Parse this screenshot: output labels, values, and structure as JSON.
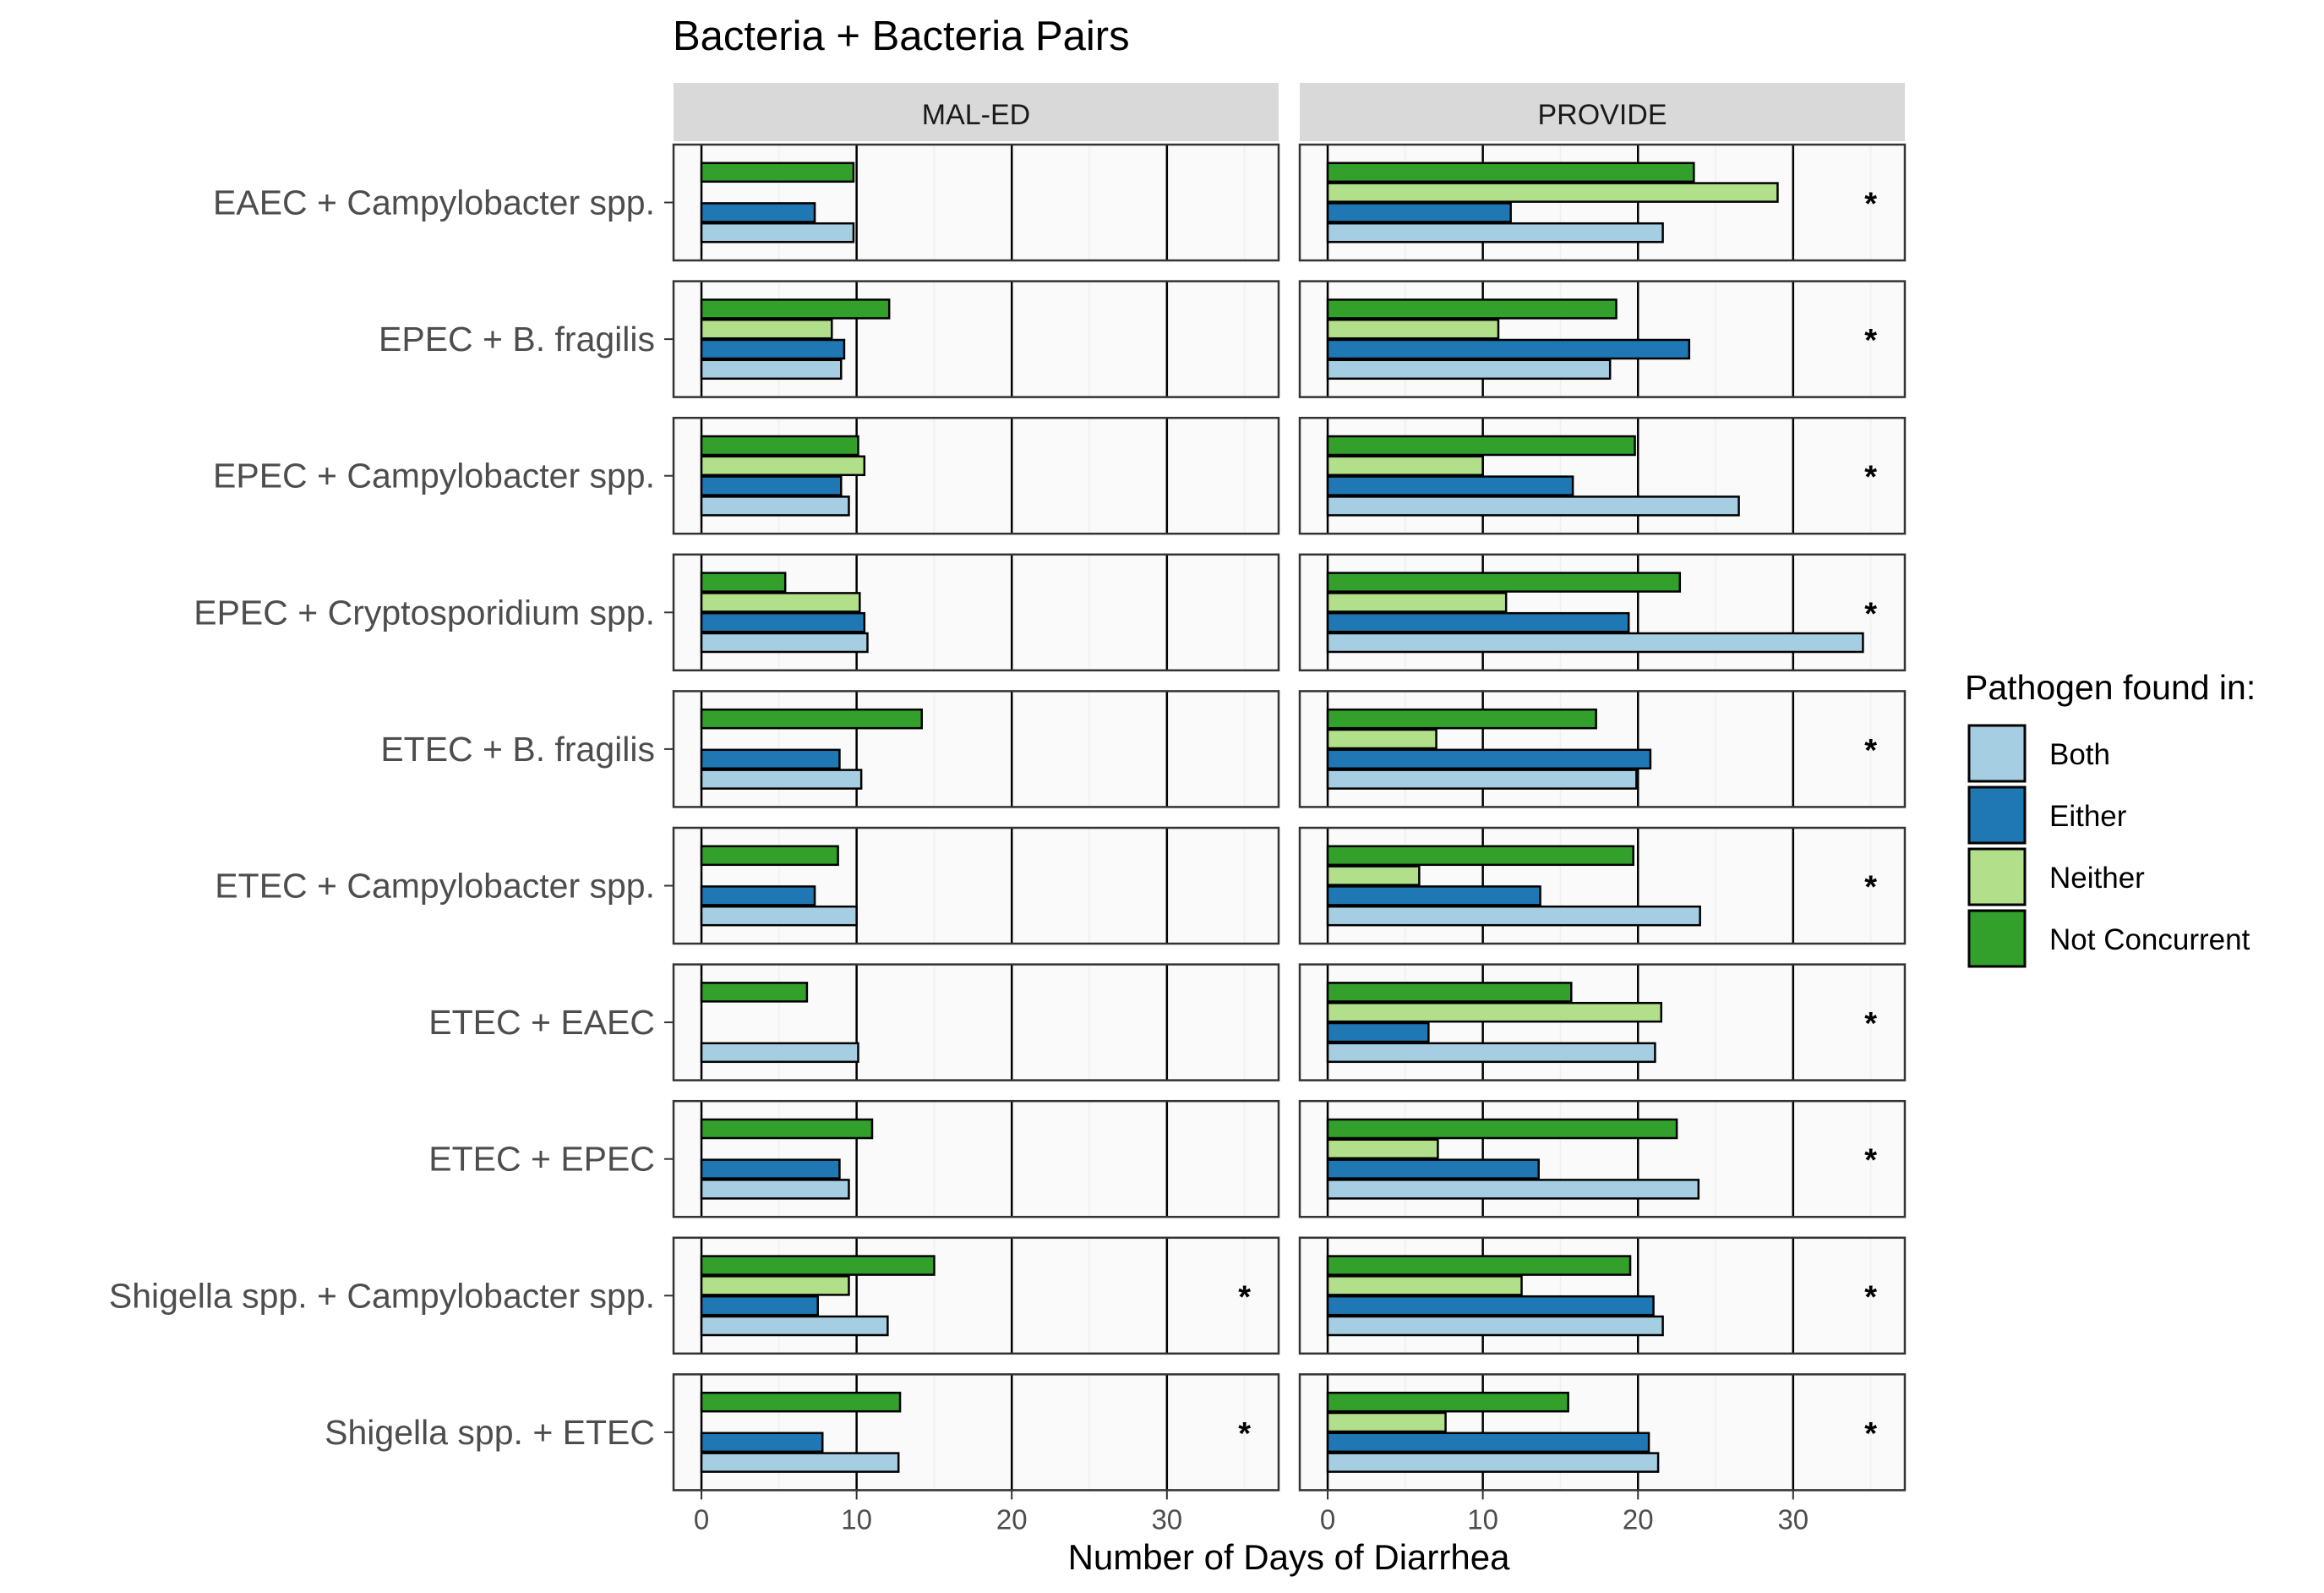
{
  "chart_data": {
    "type": "bar",
    "orientation": "horizontal",
    "title": "Bacteria + Bacteria Pairs",
    "xlabel": "Number of Days of Diarrhea",
    "xlim": [
      -1.8,
      37.2
    ],
    "xticks": [
      0,
      10,
      20,
      30
    ],
    "panels": [
      "MAL-ED",
      "PROVIDE"
    ],
    "series_names": [
      "Both",
      "Either",
      "Neither",
      "Not Concurrent"
    ],
    "legend": {
      "title": "Pathogen found in:",
      "position": "right",
      "items": [
        {
          "label": "Both",
          "color": "#a6cee3"
        },
        {
          "label": "Either",
          "color": "#1f78b4"
        },
        {
          "label": "Neither",
          "color": "#b2df8a"
        },
        {
          "label": "Not Concurrent",
          "color": "#33a02c"
        }
      ]
    },
    "significance_marker": "*",
    "rows": [
      {
        "label": "EAEC + Campylobacter spp.",
        "MAL-ED": {
          "values": [
            9.8,
            7.3,
            null,
            9.8
          ],
          "significant": false
        },
        "PROVIDE": {
          "values": [
            21.6,
            11.8,
            29.0,
            23.6
          ],
          "significant": true
        }
      },
      {
        "label": "EPEC + B. fragilis",
        "MAL-ED": {
          "values": [
            9.0,
            9.2,
            8.4,
            12.1
          ],
          "significant": false
        },
        "PROVIDE": {
          "values": [
            18.2,
            23.3,
            11.0,
            18.6
          ],
          "significant": true
        }
      },
      {
        "label": "EPEC + Campylobacter spp.",
        "MAL-ED": {
          "values": [
            9.5,
            9.0,
            10.5,
            10.1
          ],
          "significant": false
        },
        "PROVIDE": {
          "values": [
            26.5,
            15.8,
            10.0,
            19.8
          ],
          "significant": true
        }
      },
      {
        "label": "EPEC + Cryptosporidium spp.",
        "MAL-ED": {
          "values": [
            10.7,
            10.5,
            10.2,
            5.4
          ],
          "significant": false
        },
        "PROVIDE": {
          "values": [
            34.5,
            19.4,
            11.5,
            22.7
          ],
          "significant": true
        }
      },
      {
        "label": "ETEC + B. fragilis",
        "MAL-ED": {
          "values": [
            10.3,
            8.9,
            null,
            14.2
          ],
          "significant": false
        },
        "PROVIDE": {
          "values": [
            19.9,
            20.8,
            7.0,
            17.3
          ],
          "significant": true
        }
      },
      {
        "label": "ETEC + Campylobacter spp.",
        "MAL-ED": {
          "values": [
            10.0,
            7.3,
            null,
            8.8
          ],
          "significant": false
        },
        "PROVIDE": {
          "values": [
            24.0,
            13.7,
            5.9,
            19.7
          ],
          "significant": true
        }
      },
      {
        "label": "ETEC + EAEC",
        "MAL-ED": {
          "values": [
            10.1,
            null,
            null,
            6.8
          ],
          "significant": false
        },
        "PROVIDE": {
          "values": [
            21.1,
            6.5,
            21.5,
            15.7
          ],
          "significant": true
        }
      },
      {
        "label": "ETEC + EPEC",
        "MAL-ED": {
          "values": [
            9.5,
            8.9,
            null,
            11.0
          ],
          "significant": false
        },
        "PROVIDE": {
          "values": [
            23.9,
            13.6,
            7.1,
            22.5
          ],
          "significant": true
        }
      },
      {
        "label": "Shigella spp. + Campylobacter spp.",
        "MAL-ED": {
          "values": [
            12.0,
            7.5,
            9.5,
            15.0
          ],
          "significant": true
        },
        "PROVIDE": {
          "values": [
            21.6,
            21.0,
            12.5,
            19.5
          ],
          "significant": true
        }
      },
      {
        "label": "Shigella spp. + ETEC",
        "MAL-ED": {
          "values": [
            12.7,
            7.8,
            null,
            12.8
          ],
          "significant": true
        },
        "PROVIDE": {
          "values": [
            21.3,
            20.7,
            7.6,
            15.5
          ],
          "significant": true
        }
      }
    ]
  }
}
